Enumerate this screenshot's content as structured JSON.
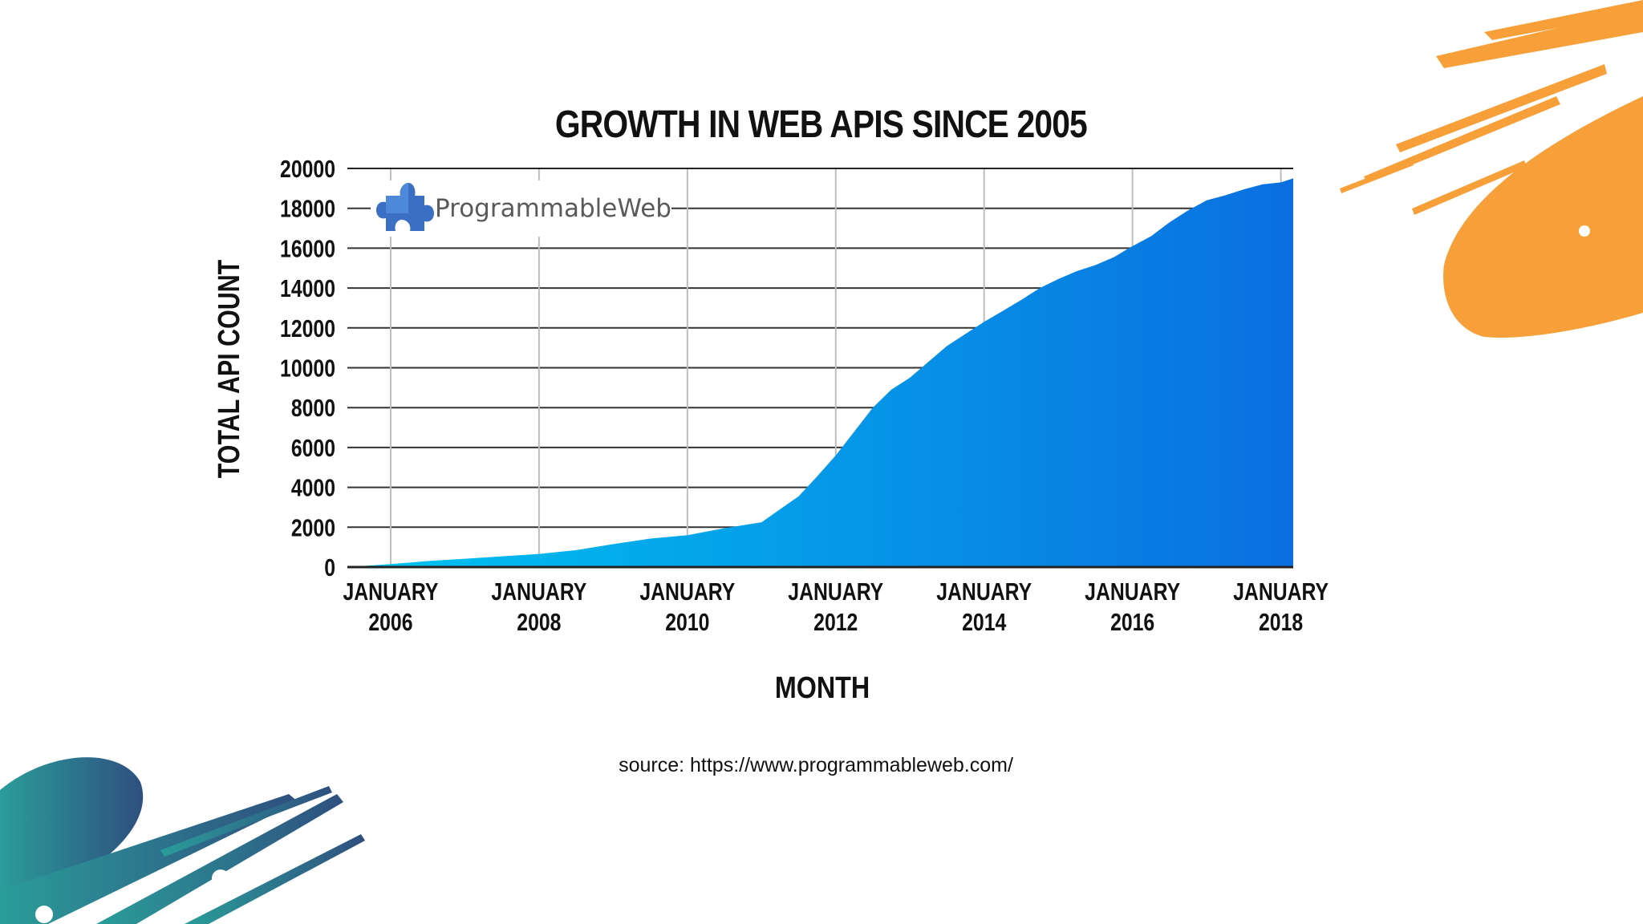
{
  "chart_data": {
    "type": "area",
    "title": "GROWTH IN WEB APIS SINCE 2005",
    "xlabel": "MONTH",
    "ylabel": "TOTAL API COUNT",
    "ylim": [
      0,
      20000
    ],
    "xlim": [
      "2005-06",
      "2018-03"
    ],
    "yticks": [
      "0",
      "2000",
      "4000",
      "6000",
      "8000",
      "10000",
      "12000",
      "14000",
      "16000",
      "18000",
      "20000"
    ],
    "xticks": [
      {
        "line1": "JANUARY",
        "line2": "2006",
        "date": "2006-01"
      },
      {
        "line1": "JANUARY",
        "line2": "2008",
        "date": "2008-01"
      },
      {
        "line1": "JANUARY",
        "line2": "2010",
        "date": "2010-01"
      },
      {
        "line1": "JANUARY",
        "line2": "2012",
        "date": "2012-01"
      },
      {
        "line1": "JANUARY",
        "line2": "2014",
        "date": "2014-01"
      },
      {
        "line1": "JANUARY",
        "line2": "2016",
        "date": "2016-01"
      },
      {
        "line1": "JANUARY",
        "line2": "2018",
        "date": "2018-01"
      }
    ],
    "grid": true,
    "fill_colors": [
      "#00c4f0",
      "#0a6fe0"
    ],
    "series": [
      {
        "x": [
          "2005-06",
          "2006-01",
          "2006-07",
          "2007-01",
          "2007-07",
          "2008-01",
          "2008-07",
          "2009-01",
          "2009-07",
          "2010-01",
          "2010-07",
          "2011-01",
          "2011-04",
          "2011-07",
          "2011-10",
          "2012-01",
          "2012-04",
          "2012-07",
          "2012-10",
          "2013-01",
          "2013-04",
          "2013-07",
          "2013-10",
          "2014-01",
          "2014-04",
          "2014-07",
          "2014-10",
          "2015-01",
          "2015-04",
          "2015-07",
          "2015-10",
          "2016-01",
          "2016-04",
          "2016-07",
          "2016-10",
          "2017-01",
          "2017-04",
          "2017-07",
          "2017-10",
          "2018-01",
          "2018-03"
        ],
        "values": [
          0,
          150,
          300,
          420,
          540,
          660,
          850,
          1150,
          1430,
          1600,
          1950,
          2250,
          2900,
          3550,
          4550,
          5600,
          6800,
          8000,
          8900,
          9500,
          10300,
          11100,
          11700,
          12300,
          12850,
          13400,
          14000,
          14450,
          14850,
          15150,
          15550,
          16100,
          16600,
          17300,
          17900,
          18400,
          18650,
          18950,
          19200,
          19300,
          19500
        ]
      }
    ],
    "logo": {
      "name": "ProgrammableWeb",
      "icon": "puzzle-piece-icon"
    },
    "source": "source: https://www.programmableweb.com/"
  }
}
